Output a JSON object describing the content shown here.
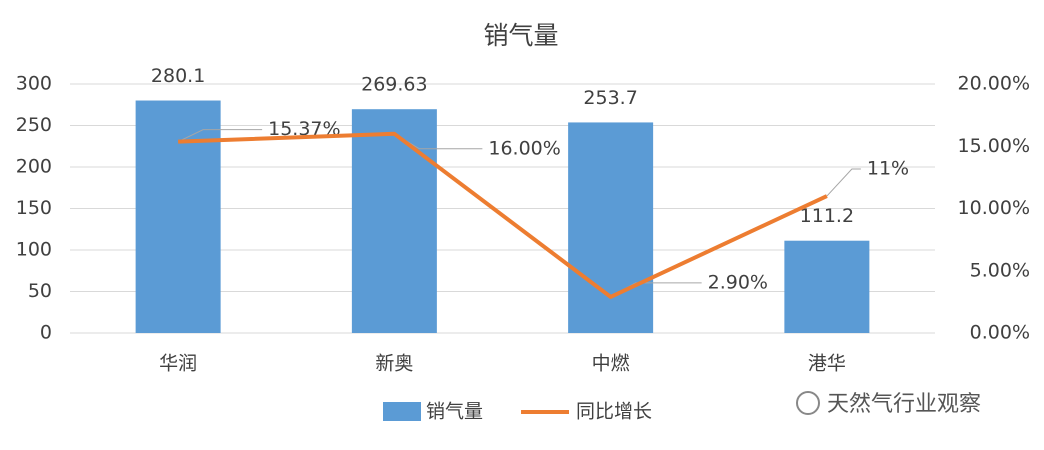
{
  "chart_data": {
    "type": "combo",
    "title": "销气量",
    "categories": [
      "华润",
      "新奥",
      "中燃",
      "港华"
    ],
    "series": [
      {
        "name": "销气量",
        "type": "bar",
        "color": "#5b9bd5",
        "values": [
          280.1,
          269.63,
          253.7,
          111.2
        ]
      },
      {
        "name": "同比增长",
        "type": "line",
        "axis": "y2",
        "color": "#ed7d31",
        "values": [
          15.37,
          16,
          2.9,
          11
        ],
        "value_labels": [
          "15.37%",
          "16.00%",
          "2.90%",
          "11%"
        ]
      }
    ],
    "ylim": [
      0,
      300
    ],
    "yticks": [
      0,
      50,
      100,
      150,
      200,
      250,
      300
    ],
    "y2lim": [
      0,
      20
    ],
    "y2ticks": [
      {
        "value": 0,
        "label": "0.00%"
      },
      {
        "value": 5,
        "label": "5.00%"
      },
      {
        "value": 10,
        "label": "10.00%"
      },
      {
        "value": 15,
        "label": "15.00%"
      },
      {
        "value": 20,
        "label": "20.00%"
      }
    ],
    "grid": true,
    "legend": "bottom",
    "watermark": "天然气行业观察"
  }
}
